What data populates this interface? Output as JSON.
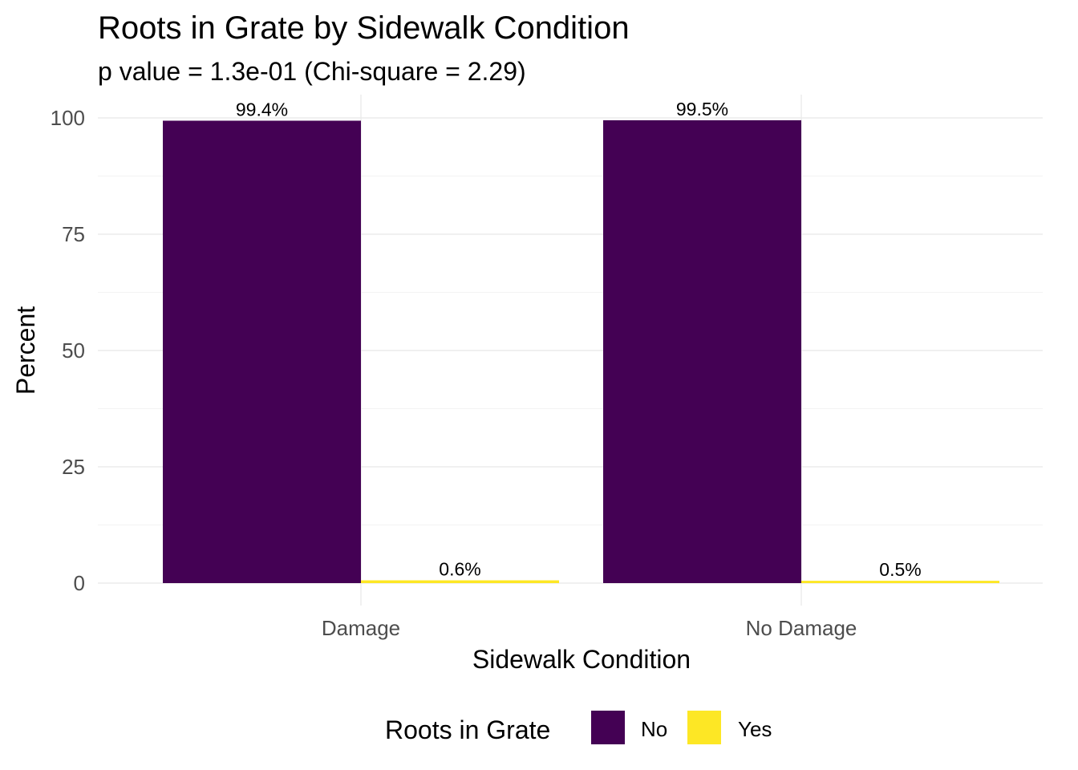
{
  "chart_data": {
    "type": "bar",
    "title": "Roots in Grate by Sidewalk Condition",
    "subtitle": "p value = 1.3e-01 (Chi-square = 2.29)",
    "xlabel": "Sidewalk Condition",
    "ylabel": "Percent",
    "categories": [
      "Damage",
      "No Damage"
    ],
    "series": [
      {
        "name": "No",
        "color": "#440154",
        "values": [
          99.4,
          99.5
        ],
        "labels": [
          "99.4%",
          "99.5%"
        ]
      },
      {
        "name": "Yes",
        "color": "#FDE725",
        "values": [
          0.6,
          0.5
        ],
        "labels": [
          "0.6%",
          "0.5%"
        ]
      }
    ],
    "ylim": [
      0,
      100
    ],
    "yticks": [
      0,
      25,
      50,
      75,
      100
    ],
    "grid": true,
    "legend": {
      "title": "Roots in Grate",
      "position": "bottom"
    }
  }
}
